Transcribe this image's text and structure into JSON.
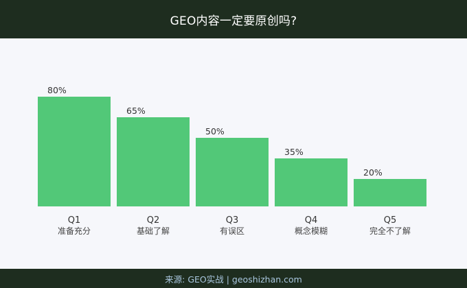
{
  "header": {
    "title": "GEO内容一定要原创吗?"
  },
  "footer": {
    "source": "来源: GEO实战 | geoshizhan.com"
  },
  "colors": {
    "bar": "#52c878",
    "header_bg": "#1e2d1f",
    "plot_bg": "#f6f7fb"
  },
  "chart_data": {
    "type": "bar",
    "title": "GEO内容一定要原创吗?",
    "categories": [
      "Q1",
      "Q2",
      "Q3",
      "Q4",
      "Q5"
    ],
    "category_sublabels": [
      "准备充分",
      "基础了解",
      "有误区",
      "概念模糊",
      "完全不了解"
    ],
    "values": [
      80,
      65,
      50,
      35,
      20
    ],
    "value_labels": [
      "80%",
      "65%",
      "50%",
      "35%",
      "20%"
    ],
    "ylim": [
      0,
      100
    ],
    "grid": false,
    "legend": "none"
  }
}
